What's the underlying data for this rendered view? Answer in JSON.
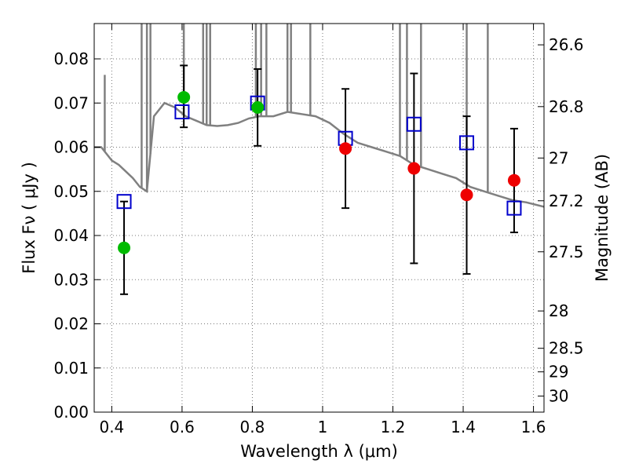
{
  "chart_data": {
    "type": "scatter",
    "title": "",
    "xlabel": "Wavelength  λ (μm)",
    "ylabel": "Flux  Fν  ( μJy )",
    "y2label": "Magnitude (AB)",
    "xlim": [
      0.35,
      1.63
    ],
    "ylim": [
      0.0,
      0.088
    ],
    "grid": true,
    "x_ticks": [
      0.4,
      0.6,
      0.8,
      1.0,
      1.2,
      1.4,
      1.6
    ],
    "x_tick_labels": [
      "0.4",
      "0.6",
      "0.8",
      "1",
      "1.2",
      "1.4",
      "1.6"
    ],
    "y_ticks": [
      0.0,
      0.01,
      0.02,
      0.03,
      0.04,
      0.05,
      0.06,
      0.07,
      0.08
    ],
    "y_tick_labels": [
      "0.00",
      "0.01",
      "0.02",
      "0.03",
      "0.04",
      "0.05",
      "0.06",
      "0.07",
      "0.08"
    ],
    "y2_ticks": [
      {
        "mag": 26.6,
        "label": "26.6"
      },
      {
        "mag": 26.8,
        "label": "26.8"
      },
      {
        "mag": 27.0,
        "label": "27"
      },
      {
        "mag": 27.2,
        "label": "27.2"
      },
      {
        "mag": 27.5,
        "label": "27.5"
      },
      {
        "mag": 28.0,
        "label": "28"
      },
      {
        "mag": 28.5,
        "label": "28.5"
      },
      {
        "mag": 29.0,
        "label": "29"
      },
      {
        "mag": 30.0,
        "label": "30"
      }
    ],
    "colors": {
      "model_line": "#808080",
      "model_points": "#0000cc",
      "detections": "#00bb00",
      "nondetections": "#ee0000",
      "errorbars": "#000000",
      "grid": "#777777"
    },
    "series": [
      {
        "type": "line",
        "x": [
          0.35,
          0.37,
          0.4,
          0.42,
          0.44,
          0.46,
          0.48,
          0.5,
          0.52,
          0.55,
          0.58,
          0.61,
          0.64,
          0.67,
          0.7,
          0.73,
          0.76,
          0.79,
          0.82,
          0.86,
          0.9,
          0.94,
          0.98,
          1.02,
          1.06,
          1.1,
          1.14,
          1.18,
          1.22,
          1.26,
          1.3,
          1.34,
          1.38,
          1.42,
          1.46,
          1.5,
          1.54,
          1.58,
          1.63
        ],
        "y": [
          0.06,
          0.06,
          0.057,
          0.056,
          0.0545,
          0.053,
          0.051,
          0.05,
          0.067,
          0.07,
          0.069,
          0.067,
          0.066,
          0.065,
          0.0648,
          0.065,
          0.0655,
          0.0665,
          0.067,
          0.067,
          0.068,
          0.0675,
          0.067,
          0.0655,
          0.063,
          0.061,
          0.06,
          0.059,
          0.058,
          0.056,
          0.055,
          0.054,
          0.053,
          0.051,
          0.05,
          0.049,
          0.048,
          0.0475,
          0.0465
        ]
      },
      {
        "type": "spikes",
        "x": [
          0.38,
          0.485,
          0.5,
          0.51,
          0.605,
          0.66,
          0.67,
          0.68,
          0.81,
          0.825,
          0.84,
          0.9,
          0.91,
          0.965,
          1.22,
          1.24,
          1.28,
          1.41,
          1.47
        ],
        "y": [
          0.0755,
          0.088,
          0.088,
          0.088,
          0.088,
          0.088,
          0.088,
          0.088,
          0.088,
          0.088,
          0.088,
          0.088,
          0.088,
          0.088,
          0.088,
          0.088,
          0.088,
          0.088,
          0.088
        ]
      },
      {
        "type": "model_points",
        "x": [
          0.435,
          0.6,
          0.815,
          1.065,
          1.26,
          1.41,
          1.545
        ],
        "y": [
          0.0477,
          0.068,
          0.07,
          0.062,
          0.0652,
          0.061,
          0.0462
        ]
      },
      {
        "type": "detections",
        "x": [
          0.435,
          0.605,
          0.815
        ],
        "y": [
          0.0372,
          0.0713,
          0.069
        ],
        "yerr_low": [
          0.0267,
          0.0645,
          0.0603
        ],
        "yerr_high": [
          0.0477,
          0.0785,
          0.0777
        ]
      },
      {
        "type": "nondetections",
        "x": [
          1.065,
          1.26,
          1.41,
          1.545
        ],
        "y": [
          0.0597,
          0.0552,
          0.0492,
          0.0525
        ],
        "yerr_low": [
          0.0462,
          0.0337,
          0.0313,
          0.0407
        ],
        "yerr_high": [
          0.0732,
          0.0767,
          0.067,
          0.0642
        ]
      }
    ]
  }
}
